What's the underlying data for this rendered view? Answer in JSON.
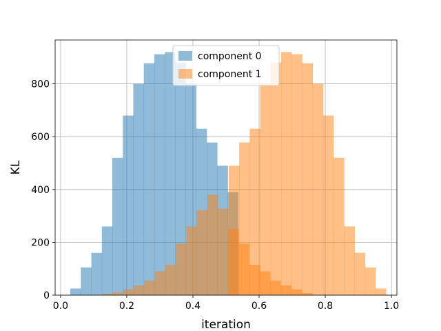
{
  "chart_data": {
    "type": "bar",
    "title": "",
    "xlabel": "iteration",
    "ylabel": "KL",
    "xlim": [
      -0.0165,
      1.0165
    ],
    "ylim": [
      0,
      966
    ],
    "xticks": [
      0.0,
      0.2,
      0.4,
      0.6,
      0.8,
      1.0
    ],
    "xtick_labels": [
      "0.0",
      "0.2",
      "0.4",
      "0.6",
      "0.8",
      "1.0"
    ],
    "yticks": [
      0,
      200,
      400,
      600,
      800
    ],
    "ytick_labels": [
      "0",
      "200",
      "400",
      "600",
      "800"
    ],
    "grid": true,
    "legend_position": "top-center",
    "series": [
      {
        "name": "component 0",
        "color": "#1f77b4",
        "bin_start": 0.0296,
        "bin_width": 0.0317,
        "values": [
          25,
          105,
          160,
          260,
          520,
          680,
          800,
          878,
          912,
          920,
          880,
          800,
          630,
          578,
          490,
          390
        ]
      },
      {
        "name": "component 1",
        "color": "#ff7f0e",
        "bin_start": 0.1264,
        "bin_width": 0.0317,
        "values": [
          5,
          10,
          22,
          37,
          55,
          90,
          115,
          195,
          260,
          322,
          380,
          327,
          250,
          195,
          115,
          90,
          55,
          37,
          22,
          8
        ]
      },
      {
        "name": "component 1",
        "color": "#ff7f0e",
        "bin_start": 0.5082,
        "bin_width": 0.0317,
        "values": [
          490,
          578,
          630,
          800,
          880,
          920,
          912,
          878,
          800,
          680,
          520,
          260,
          160,
          105,
          25
        ]
      }
    ],
    "legend": [
      {
        "label": "component 0",
        "color": "#1f77b4"
      },
      {
        "label": "component 1",
        "color": "#ff7f0e"
      }
    ]
  }
}
